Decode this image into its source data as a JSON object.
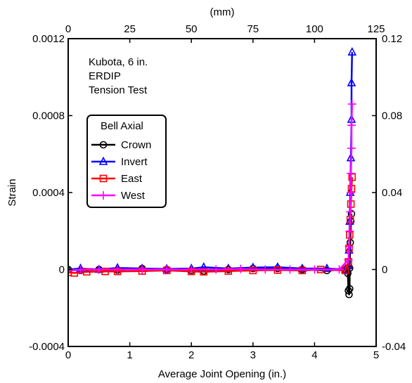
{
  "chart_data": {
    "type": "line",
    "annotation": [
      "Kubota, 6 in.",
      "ERDIP",
      "Tension Test"
    ],
    "xlabel": "Average Joint Opening (in.)",
    "ylabel": "Strain",
    "x2label": "(mm)",
    "xlim": [
      0,
      5
    ],
    "ylim": [
      -0.0004,
      0.0012
    ],
    "x2lim": [
      0,
      125
    ],
    "y2lim": [
      -0.04,
      0.12
    ],
    "xticks": [
      "0",
      "1",
      "2",
      "3",
      "4",
      "5"
    ],
    "yticks": [
      "-0.0004",
      "0",
      "0.0004",
      "0.0008",
      "0.0012"
    ],
    "x2ticks": [
      "0",
      "25",
      "50",
      "75",
      "100",
      "125"
    ],
    "y2ticks": [
      "-0.04",
      "0",
      "0.04",
      "0.08",
      "0.12"
    ],
    "grid": false,
    "legend": {
      "title": "Bell Axial",
      "placement": "upper-left"
    },
    "series": [
      {
        "name": "Crown",
        "color": "#000000",
        "marker": "circle",
        "x": [
          0,
          0.2,
          0.5,
          0.8,
          1.2,
          1.6,
          2.0,
          2.2,
          2.6,
          3.0,
          3.4,
          3.8,
          4.2,
          4.5,
          4.54,
          4.55,
          4.56,
          4.57,
          4.57,
          4.58,
          4.59,
          4.6
        ],
        "y": [
          0,
          -5e-06,
          0,
          -3e-06,
          5e-06,
          0,
          -5e-06,
          -8e-06,
          0,
          5e-06,
          5e-06,
          0,
          -5e-06,
          0,
          -2e-05,
          -0.00011,
          -0.00013,
          -0.0001,
          7e-06,
          0.00014,
          0.00025,
          0.00029
        ]
      },
      {
        "name": "Invert",
        "color": "#0000ff",
        "marker": "triangle",
        "x": [
          0,
          0.2,
          0.5,
          0.8,
          1.2,
          1.6,
          2.0,
          2.2,
          2.6,
          3.0,
          3.4,
          3.8,
          4.2,
          4.5,
          4.55,
          4.56,
          4.57,
          4.58,
          4.59,
          4.6,
          4.6,
          4.61
        ],
        "y": [
          0,
          5e-06,
          0,
          8e-06,
          5e-06,
          3e-06,
          5e-06,
          1.2e-05,
          5e-06,
          1e-05,
          1.2e-05,
          5e-06,
          5e-06,
          0,
          2e-05,
          0.0001,
          0.00025,
          0.0004,
          0.00058,
          0.00078,
          0.00097,
          0.00113
        ]
      },
      {
        "name": "East",
        "color": "#ff0000",
        "marker": "square",
        "x": [
          0,
          0.1,
          0.3,
          0.6,
          0.8,
          1.2,
          1.6,
          2.0,
          2.2,
          2.6,
          3.0,
          3.4,
          3.8,
          4.1,
          4.5,
          4.55,
          4.56,
          4.57,
          4.58,
          4.59,
          4.6,
          4.61
        ],
        "y": [
          -1.5e-05,
          -1.8e-05,
          -1.2e-05,
          -1e-05,
          -1e-05,
          -8e-06,
          -5e-06,
          -1e-05,
          -1.2e-05,
          -8e-06,
          -5e-06,
          -3e-06,
          -5e-06,
          0,
          -5e-06,
          4e-05,
          0.00011,
          0.00018,
          0.00026,
          0.00034,
          0.00042,
          0.00048
        ]
      },
      {
        "name": "West",
        "color": "#ff00ff",
        "marker": "plus",
        "x": [
          0,
          0.2,
          0.5,
          0.8,
          1.2,
          1.6,
          2.0,
          2.4,
          2.8,
          3.2,
          3.6,
          4.0,
          4.4,
          4.55,
          4.56,
          4.57,
          4.58,
          4.59,
          4.59,
          4.6,
          4.6,
          4.61
        ],
        "y": [
          -5e-06,
          -2e-06,
          0,
          0,
          0,
          0,
          0,
          0,
          3e-06,
          0,
          0,
          0,
          0,
          5e-05,
          0.00012,
          0.0002,
          0.0003,
          0.0004,
          0.0005,
          0.00063,
          0.00075,
          0.00086
        ]
      }
    ]
  }
}
